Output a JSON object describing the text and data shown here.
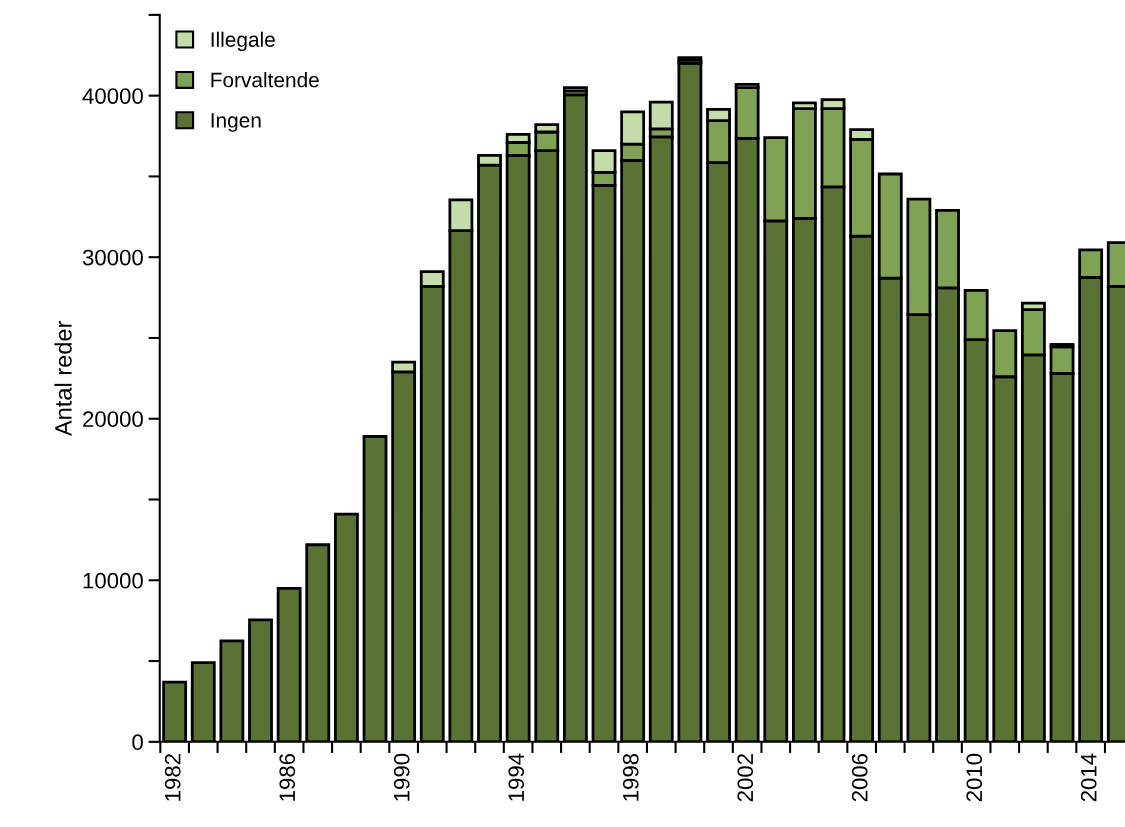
{
  "chart_data": {
    "type": "bar",
    "stacked": true,
    "ylabel": "Antal reder",
    "categories": [
      "1982",
      null,
      null,
      null,
      "1986",
      null,
      null,
      null,
      "1990",
      null,
      null,
      null,
      "1994",
      null,
      null,
      null,
      "1998",
      null,
      null,
      null,
      "2002",
      null,
      null,
      null,
      "2006",
      null,
      null,
      null,
      "2010",
      null,
      null,
      null,
      "2014",
      null
    ],
    "series": [
      {
        "name": "Ingen",
        "color": "#5a7335",
        "values": [
          3700,
          4900,
          6250,
          7550,
          9500,
          12200,
          14100,
          18900,
          22900,
          28200,
          31650,
          35700,
          36300,
          36600,
          40050,
          34450,
          36000,
          37450,
          42000,
          35850,
          37350,
          32250,
          32400,
          34350,
          31300,
          28700,
          26450,
          28100,
          24900,
          22600,
          23950,
          22800,
          28750,
          28200
        ]
      },
      {
        "name": "Forvaltende",
        "color": "#80a254",
        "values": [
          null,
          null,
          null,
          null,
          null,
          null,
          null,
          null,
          null,
          null,
          null,
          null,
          800,
          1150,
          250,
          800,
          1000,
          500,
          200,
          2600,
          3150,
          5150,
          6800,
          4850,
          6000,
          6450,
          7150,
          4800,
          3050,
          2850,
          2800,
          1650,
          1700,
          2700
        ]
      },
      {
        "name": "Illegale",
        "color": "#c3dcaa",
        "values": [
          null,
          null,
          null,
          null,
          null,
          null,
          null,
          null,
          600,
          900,
          1900,
          600,
          500,
          450,
          200,
          1350,
          2000,
          1650,
          150,
          700,
          200,
          null,
          350,
          550,
          600,
          null,
          null,
          null,
          null,
          null,
          400,
          150,
          null,
          null
        ]
      }
    ],
    "ylim": [
      0,
      45000
    ],
    "yticks": [
      0,
      {
        "value": 5000,
        "label": null
      },
      10000,
      {
        "value": 15000,
        "label": null
      },
      20000,
      {
        "value": 25000,
        "label": null
      },
      30000,
      {
        "value": 35000,
        "label": null
      },
      40000,
      {
        "value": 45000,
        "label": null
      }
    ],
    "grid": false,
    "legend": "top left"
  }
}
